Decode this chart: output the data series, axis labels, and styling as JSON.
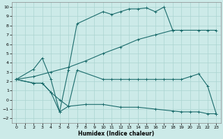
{
  "xlabel": "Humidex (Indice chaleur)",
  "xlim": [
    -0.5,
    23.5
  ],
  "ylim": [
    -2.5,
    10.5
  ],
  "xticks": [
    0,
    1,
    2,
    3,
    4,
    5,
    6,
    7,
    8,
    9,
    10,
    11,
    12,
    13,
    14,
    15,
    16,
    17,
    18,
    19,
    20,
    21,
    22,
    23
  ],
  "yticks": [
    -2,
    -1,
    0,
    1,
    2,
    3,
    4,
    5,
    6,
    7,
    8,
    9,
    10
  ],
  "background_color": "#cceae8",
  "grid_color": "#aad4d0",
  "line_color": "#1a6b6b",
  "lines": [
    {
      "x": [
        0,
        2,
        3,
        4,
        5,
        6,
        7,
        10,
        11,
        12,
        13,
        14,
        15,
        16,
        17,
        18
      ],
      "y": [
        2.2,
        3.3,
        4.5,
        2.2,
        -1.3,
        3.2,
        8.2,
        9.5,
        9.2,
        9.5,
        9.8,
        9.8,
        9.9,
        9.5,
        10.0,
        7.5
      ]
    },
    {
      "x": [
        0,
        2,
        3,
        4,
        5,
        6,
        7,
        10,
        11,
        12,
        13,
        14,
        15,
        16,
        17,
        18,
        19,
        20,
        21,
        22,
        23
      ],
      "y": [
        2.2,
        1.8,
        1.8,
        0.8,
        0.0,
        -0.7,
        3.2,
        2.2,
        2.2,
        2.2,
        2.2,
        2.2,
        2.2,
        2.2,
        2.2,
        2.2,
        2.2,
        2.5,
        2.8,
        1.5,
        -1.5
      ]
    },
    {
      "x": [
        0,
        2,
        4,
        6,
        8,
        10,
        12,
        14,
        16,
        18,
        19,
        21,
        22,
        23
      ],
      "y": [
        2.2,
        2.5,
        3.0,
        3.5,
        4.2,
        5.0,
        5.7,
        6.5,
        7.0,
        7.5,
        7.5,
        7.5,
        7.5,
        7.5
      ]
    },
    {
      "x": [
        0,
        2,
        3,
        4,
        5,
        6,
        8,
        10,
        12,
        14,
        16,
        18,
        19,
        20,
        21,
        22,
        23
      ],
      "y": [
        2.2,
        1.8,
        1.8,
        0.8,
        -1.3,
        -0.7,
        -0.5,
        -0.5,
        -0.8,
        -0.8,
        -1.0,
        -1.2,
        -1.3,
        -1.3,
        -1.3,
        -1.5,
        -1.5
      ]
    }
  ]
}
